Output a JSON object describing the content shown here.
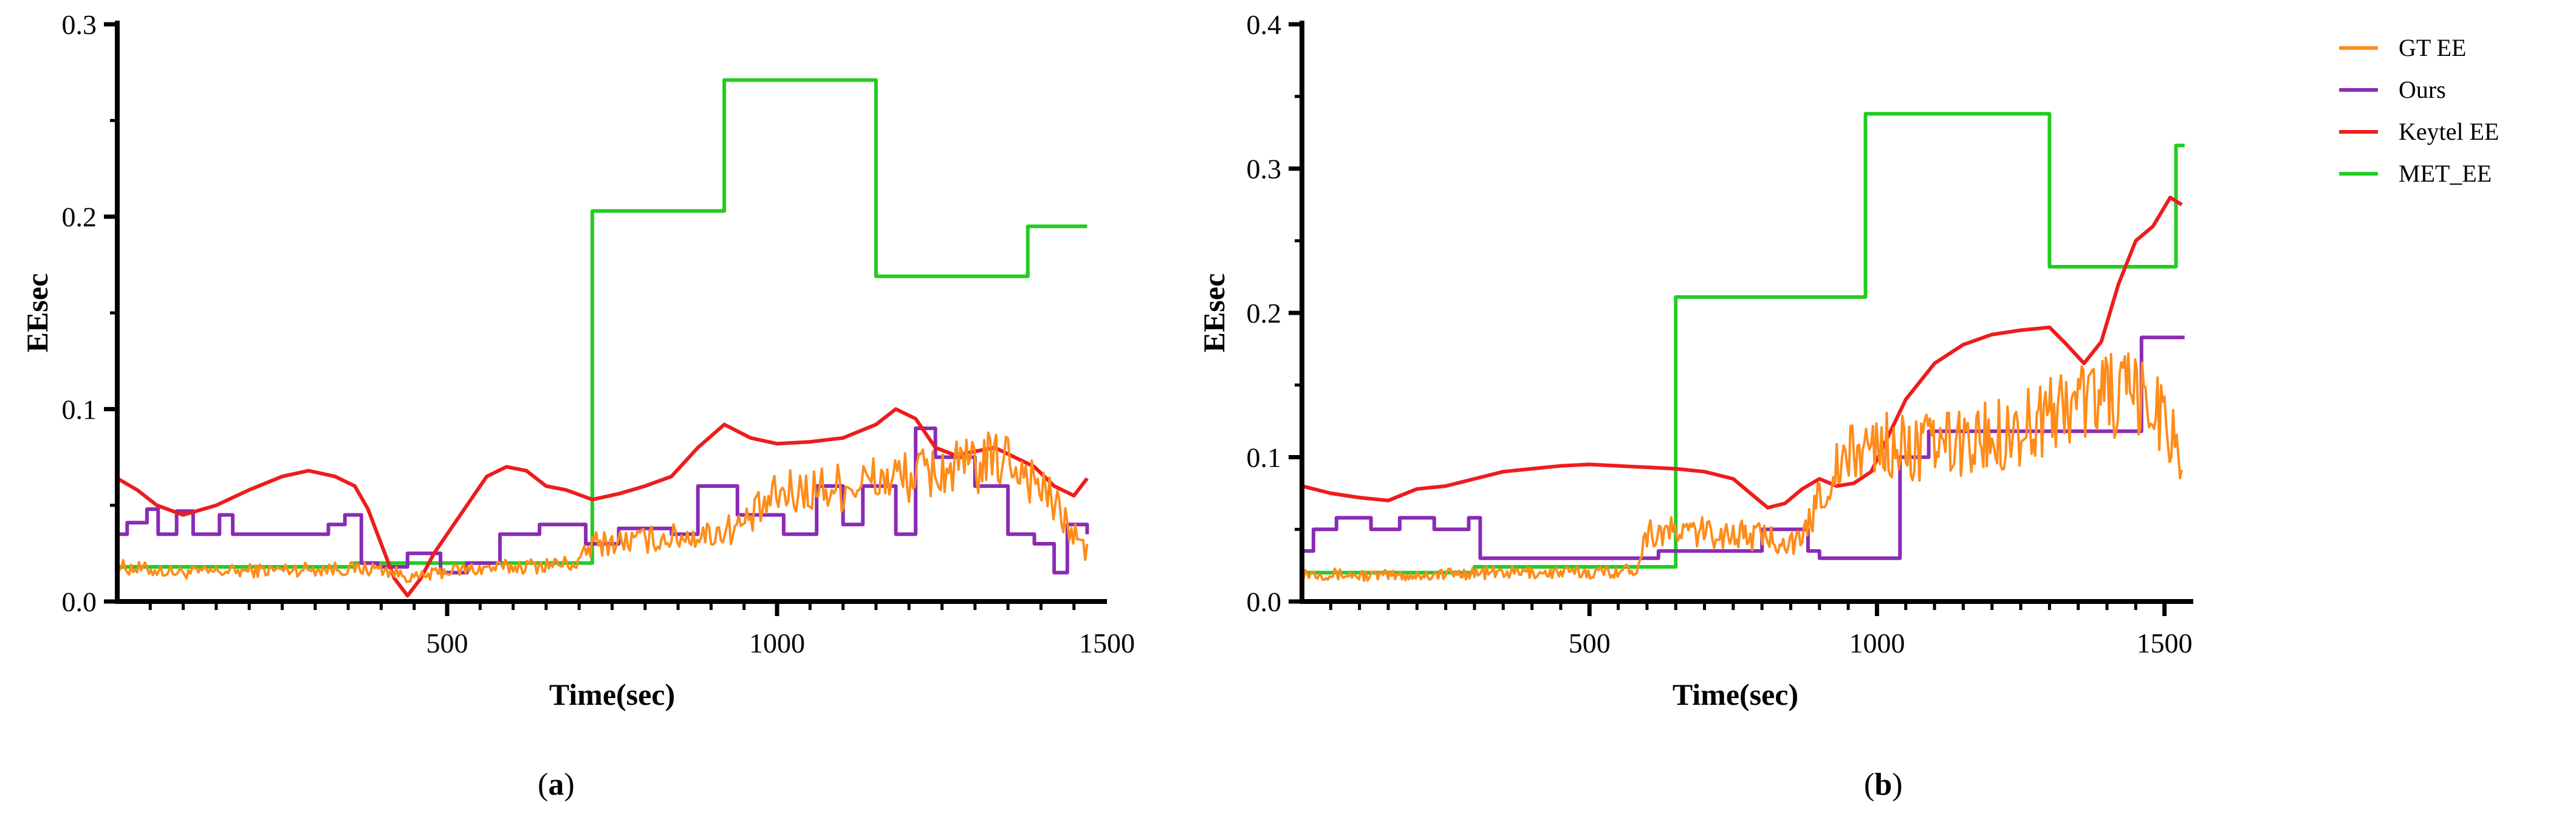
{
  "legend": [
    {
      "name": "GT EE",
      "color": "#ff8c1a"
    },
    {
      "name": "Ours",
      "color": "#8a2bb5"
    },
    {
      "name": "Keytel EE",
      "color": "#ee1c1c"
    },
    {
      "name": "MET_EE",
      "color": "#22cc22"
    }
  ],
  "captions": {
    "a": {
      "open": "(",
      "letter": "a",
      "close": ")"
    },
    "b": {
      "open": "(",
      "letter": "b",
      "close": ")"
    }
  },
  "chart_data": [
    {
      "id": "a",
      "type": "line",
      "xlabel": "Time(sec)",
      "ylabel": "EEsec",
      "xlim": [
        0,
        1500
      ],
      "ylim": [
        0,
        0.3
      ],
      "xticks": [
        500,
        1000,
        1500
      ],
      "yticks": [
        0.0,
        0.1,
        0.2,
        0.3
      ],
      "ytick_labels": [
        "0.0",
        "0.1",
        "0.2",
        "0.3"
      ],
      "grid": false,
      "series": [
        {
          "name": "MET_EE",
          "color": "#22cc22",
          "step": true,
          "x": [
            0,
            360,
            720,
            920,
            1150,
            1380,
            1470
          ],
          "y": [
            0.018,
            0.02,
            0.203,
            0.271,
            0.169,
            0.195,
            0.195
          ]
        },
        {
          "name": "Ours",
          "color": "#8a2bb5",
          "step": true,
          "x": [
            0,
            15,
            45,
            62,
            90,
            115,
            155,
            175,
            195,
            320,
            345,
            370,
            395,
            440,
            490,
            530,
            580,
            640,
            710,
            760,
            840,
            880,
            940,
            1010,
            1060,
            1100,
            1130,
            1180,
            1210,
            1240,
            1300,
            1350,
            1390,
            1420,
            1440,
            1470
          ],
          "y": [
            0.035,
            0.041,
            0.048,
            0.035,
            0.047,
            0.035,
            0.045,
            0.035,
            0.035,
            0.04,
            0.045,
            0.02,
            0.018,
            0.025,
            0.015,
            0.02,
            0.035,
            0.04,
            0.03,
            0.038,
            0.035,
            0.06,
            0.045,
            0.035,
            0.06,
            0.04,
            0.06,
            0.035,
            0.09,
            0.075,
            0.06,
            0.035,
            0.03,
            0.015,
            0.04,
            0.035
          ]
        },
        {
          "name": "Keytel EE",
          "color": "#ee1c1c",
          "x": [
            0,
            30,
            60,
            100,
            150,
            200,
            250,
            290,
            330,
            360,
            380,
            400,
            420,
            440,
            460,
            480,
            500,
            530,
            560,
            590,
            620,
            650,
            680,
            720,
            760,
            800,
            840,
            880,
            920,
            960,
            1000,
            1050,
            1100,
            1150,
            1180,
            1210,
            1240,
            1270,
            1300,
            1330,
            1360,
            1390,
            1420,
            1450,
            1470
          ],
          "y": [
            0.064,
            0.058,
            0.05,
            0.045,
            0.05,
            0.058,
            0.065,
            0.068,
            0.065,
            0.06,
            0.048,
            0.03,
            0.012,
            0.003,
            0.012,
            0.025,
            0.035,
            0.05,
            0.065,
            0.07,
            0.068,
            0.06,
            0.058,
            0.053,
            0.056,
            0.06,
            0.065,
            0.08,
            0.092,
            0.085,
            0.082,
            0.083,
            0.085,
            0.092,
            0.1,
            0.095,
            0.08,
            0.076,
            0.078,
            0.08,
            0.075,
            0.07,
            0.06,
            0.055,
            0.064
          ]
        },
        {
          "name": "GT EE",
          "color": "#ff8c1a",
          "noisy": true,
          "x": [
            0,
            100,
            200,
            300,
            400,
            450,
            500,
            600,
            700,
            720,
            800,
            900,
            950,
            1000,
            1050,
            1100,
            1150,
            1200,
            1250,
            1300,
            1350,
            1400,
            1440,
            1470
          ],
          "y": [
            0.018,
            0.015,
            0.016,
            0.017,
            0.017,
            0.012,
            0.016,
            0.018,
            0.02,
            0.03,
            0.032,
            0.035,
            0.04,
            0.055,
            0.058,
            0.06,
            0.063,
            0.065,
            0.068,
            0.07,
            0.075,
            0.06,
            0.04,
            0.025
          ]
        }
      ]
    },
    {
      "id": "b",
      "type": "line",
      "xlabel": "Time(sec)",
      "ylabel": "EEsec",
      "xlim": [
        0,
        1550
      ],
      "ylim": [
        0,
        0.4
      ],
      "xticks": [
        500,
        1000,
        1500
      ],
      "yticks": [
        0.0,
        0.1,
        0.2,
        0.3,
        0.4
      ],
      "ytick_labels": [
        "0.0",
        "0.1",
        "0.2",
        "0.3",
        "0.4"
      ],
      "grid": false,
      "series": [
        {
          "name": "MET_EE",
          "color": "#22cc22",
          "step": true,
          "x": [
            0,
            300,
            650,
            980,
            1300,
            1520,
            1535
          ],
          "y": [
            0.02,
            0.024,
            0.211,
            0.338,
            0.232,
            0.316,
            0.316
          ]
        },
        {
          "name": "Ours",
          "color": "#8a2bb5",
          "step": true,
          "x": [
            0,
            20,
            60,
            120,
            170,
            230,
            290,
            310,
            580,
            620,
            760,
            800,
            880,
            900,
            1040,
            1090,
            1440,
            1460,
            1535
          ],
          "y": [
            0.035,
            0.05,
            0.058,
            0.05,
            0.058,
            0.05,
            0.058,
            0.03,
            0.03,
            0.035,
            0.035,
            0.05,
            0.035,
            0.03,
            0.1,
            0.118,
            0.118,
            0.183,
            0.183
          ]
        },
        {
          "name": "Keytel EE",
          "color": "#ee1c1c",
          "x": [
            0,
            50,
            100,
            150,
            200,
            250,
            300,
            350,
            400,
            450,
            500,
            550,
            600,
            650,
            700,
            750,
            780,
            810,
            840,
            870,
            900,
            930,
            960,
            990,
            1020,
            1050,
            1100,
            1150,
            1200,
            1250,
            1300,
            1330,
            1360,
            1390,
            1420,
            1450,
            1480,
            1510,
            1530
          ],
          "y": [
            0.08,
            0.075,
            0.072,
            0.07,
            0.078,
            0.08,
            0.085,
            0.09,
            0.092,
            0.094,
            0.095,
            0.094,
            0.093,
            0.092,
            0.09,
            0.085,
            0.075,
            0.065,
            0.068,
            0.078,
            0.085,
            0.08,
            0.082,
            0.09,
            0.115,
            0.14,
            0.165,
            0.178,
            0.185,
            0.188,
            0.19,
            0.178,
            0.165,
            0.18,
            0.22,
            0.25,
            0.26,
            0.28,
            0.275
          ]
        },
        {
          "name": "GT EE",
          "color": "#ff8c1a",
          "noisy": true,
          "x": [
            0,
            100,
            200,
            300,
            400,
            500,
            580,
            600,
            700,
            800,
            870,
            900,
            950,
            1000,
            1050,
            1100,
            1150,
            1200,
            1250,
            1300,
            1350,
            1400,
            1450,
            1500,
            1530
          ],
          "y": [
            0.02,
            0.018,
            0.018,
            0.02,
            0.02,
            0.02,
            0.022,
            0.048,
            0.048,
            0.045,
            0.04,
            0.075,
            0.1,
            0.11,
            0.105,
            0.108,
            0.11,
            0.115,
            0.12,
            0.13,
            0.14,
            0.145,
            0.14,
            0.13,
            0.1
          ]
        }
      ]
    }
  ]
}
